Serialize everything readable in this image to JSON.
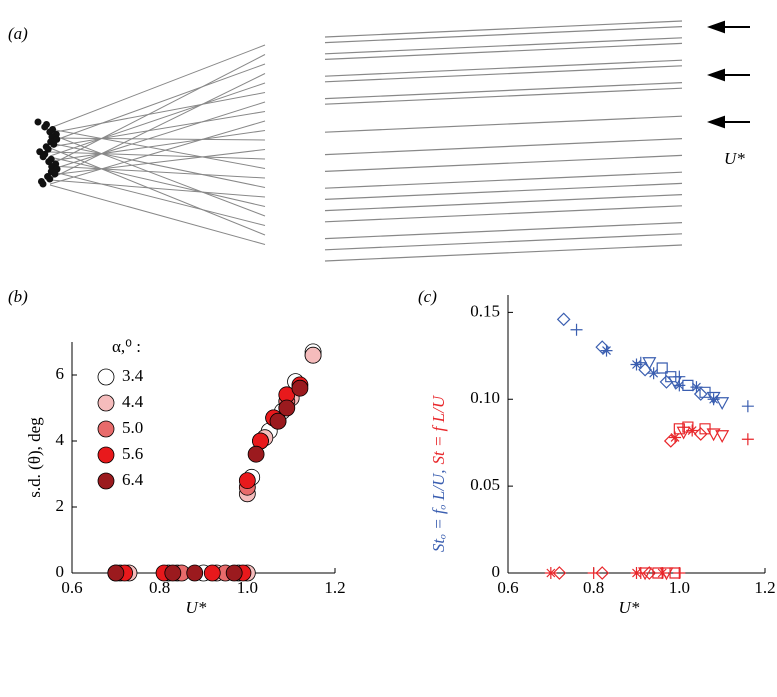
{
  "panel_a": {
    "label": "(a)",
    "flow_label": "U*"
  },
  "chart_data": [
    {
      "type": "scatter",
      "panel_label": "(b)",
      "xlabel": "U*",
      "ylabel": "s.d. (θ), deg",
      "legend_title": "α,⁰ :",
      "xlim": [
        0.6,
        1.2
      ],
      "xticks": [
        0.6,
        0.8,
        {
          "value": 1,
          "label": "1.0"
        },
        1.2
      ],
      "ylim": [
        0,
        7
      ],
      "yticks": [
        0,
        2,
        4,
        6
      ],
      "series": [
        {
          "name": "3.4",
          "color": "#ffffff",
          "x": [
            0.7,
            0.82,
            0.9,
            0.98,
            1.01,
            1.05,
            1.08,
            1.11,
            1.15,
            1.15
          ],
          "values": [
            0,
            0,
            0,
            0,
            2.9,
            4.3,
            4.9,
            5.8,
            6.6,
            6.7
          ]
        },
        {
          "name": "4.4",
          "color": "#f5bcbc",
          "x": [
            0.73,
            0.84,
            0.93,
            1.0,
            1.0,
            1.04,
            1.07,
            1.1,
            1.15
          ],
          "values": [
            0,
            0,
            0,
            0,
            2.4,
            4.1,
            4.6,
            5.3,
            6.6
          ]
        },
        {
          "name": "5.0",
          "color": "#e86b6b",
          "x": [
            0.71,
            0.85,
            0.95,
            1.0,
            1.03,
            1.06,
            1.09
          ],
          "values": [
            0,
            0,
            0,
            2.6,
            4.0,
            4.7,
            5.2
          ]
        },
        {
          "name": "5.6",
          "color": "#e8191c",
          "x": [
            0.72,
            0.81,
            0.92,
            0.99,
            1.0,
            1.03,
            1.06,
            1.09,
            1.12
          ],
          "values": [
            0,
            0,
            0,
            0,
            2.8,
            4.0,
            4.7,
            5.4,
            5.7
          ]
        },
        {
          "name": "6.4",
          "color": "#9b1a1e",
          "x": [
            0.7,
            0.83,
            0.88,
            0.97,
            1.02,
            1.07,
            1.09,
            1.12
          ],
          "values": [
            0,
            0,
            0,
            0,
            3.6,
            4.6,
            5.0,
            5.6
          ]
        }
      ]
    },
    {
      "type": "scatter",
      "panel_label": "(c)",
      "xlabel": "U*",
      "ylabel": [
        "Stₒ = fₒ L/U,",
        "St = f L/U"
      ],
      "xlim": [
        0.6,
        1.2
      ],
      "xticks": [
        0.6,
        0.8,
        {
          "value": 1,
          "label": "1.0"
        },
        1.2
      ],
      "ylim": [
        0,
        0.16
      ],
      "yticks": [
        0,
        0.05,
        {
          "value": 0.1,
          "label": "0.10"
        },
        0.15
      ],
      "series": [
        {
          "color": "#3a5eb0",
          "marker": "diamond",
          "x": [
            0.73,
            0.82,
            0.92,
            0.97,
            1.05
          ],
          "values": [
            0.146,
            0.13,
            0.117,
            0.11,
            0.103
          ]
        },
        {
          "color": "#3a5eb0",
          "marker": "plus",
          "x": [
            0.76,
            0.91,
            1.0,
            1.16
          ],
          "values": [
            0.14,
            0.121,
            0.113,
            0.096
          ]
        },
        {
          "color": "#3a5eb0",
          "marker": "square",
          "x": [
            0.96,
            0.98,
            1.02,
            1.06
          ],
          "values": [
            0.118,
            0.113,
            0.108,
            0.104
          ]
        },
        {
          "color": "#3a5eb0",
          "marker": "triangle",
          "x": [
            0.93,
            0.99,
            1.08,
            1.1
          ],
          "values": [
            0.121,
            0.11,
            0.101,
            0.098
          ]
        },
        {
          "color": "#3a5eb0",
          "marker": "star",
          "x": [
            0.83,
            0.9,
            0.94,
            1.0,
            1.04,
            1.08
          ],
          "values": [
            0.128,
            0.12,
            0.115,
            0.108,
            0.107,
            0.1
          ]
        },
        {
          "color": "#e8262a",
          "marker": "diamond",
          "x": [
            0.72,
            0.82,
            0.93,
            0.98,
            1.05
          ],
          "values": [
            0,
            0,
            0,
            0.076,
            0.08
          ]
        },
        {
          "color": "#e8262a",
          "marker": "plus",
          "x": [
            0.8,
            0.91,
            1.0,
            1.16
          ],
          "values": [
            0,
            0,
            0,
            0.077
          ]
        },
        {
          "color": "#e8262a",
          "marker": "square",
          "x": [
            0.95,
            0.99,
            1.0,
            1.02,
            1.06
          ],
          "values": [
            0,
            0,
            0.083,
            0.084,
            0.083
          ]
        },
        {
          "color": "#e8262a",
          "marker": "triangle",
          "x": [
            0.92,
            0.97,
            1.01,
            1.08,
            1.1
          ],
          "values": [
            0,
            0,
            0.081,
            0.08,
            0.079
          ]
        },
        {
          "color": "#e8262a",
          "marker": "star",
          "x": [
            0.7,
            0.9,
            0.96,
            0.99,
            1.03
          ],
          "values": [
            0,
            0,
            0,
            0.078,
            0.082
          ]
        }
      ]
    }
  ]
}
